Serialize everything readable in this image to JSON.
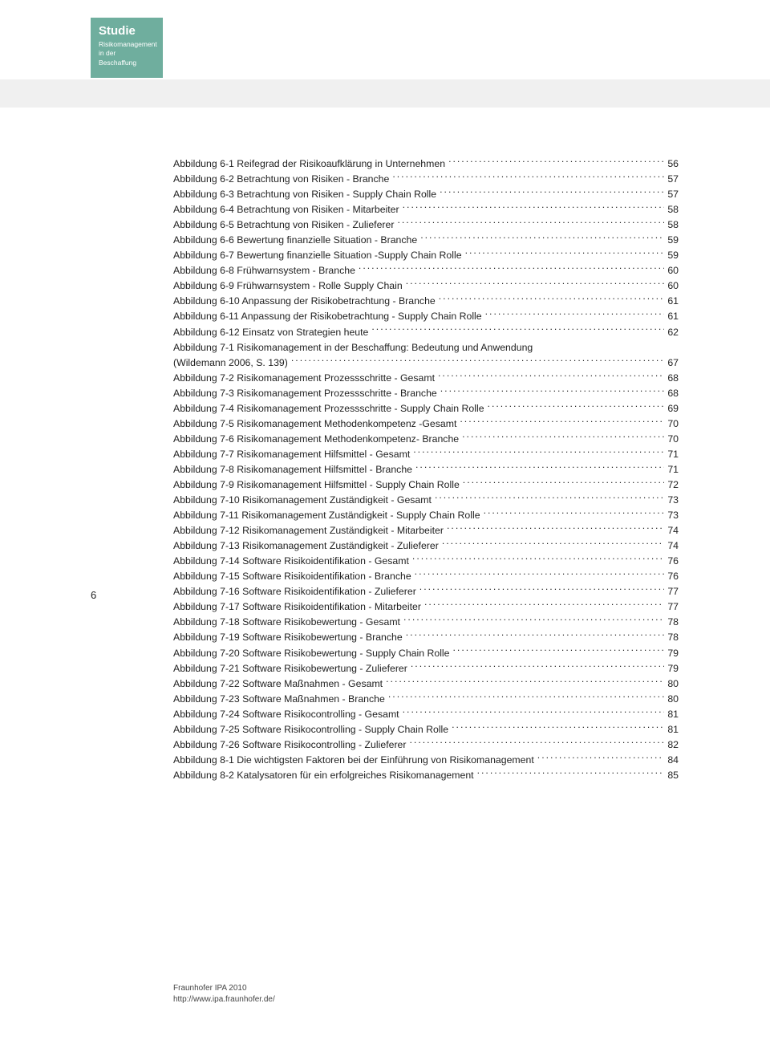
{
  "header": {
    "title": "Studie",
    "subtitle1": "Risikomanagement",
    "subtitle2": "in der Beschaffung"
  },
  "page_number": "6",
  "footer": {
    "line1": "Fraunhofer IPA 2010",
    "line2": "http://www.ipa.fraunhofer.de/"
  },
  "colors": {
    "tab_bg": "#6fae9e",
    "tab_text": "#ffffff",
    "bar_bg": "#f0f0f0",
    "body_text": "#222222",
    "page_bg": "#ffffff"
  },
  "toc": [
    {
      "label": "Abbildung 6-1 Reifegrad der Risikoaufklärung in Unternehmen",
      "page": "56"
    },
    {
      "label": "Abbildung 6-2 Betrachtung von Risiken - Branche",
      "page": "57"
    },
    {
      "label": "Abbildung 6-3 Betrachtung von Risiken - Supply Chain Rolle",
      "page": "57"
    },
    {
      "label": "Abbildung 6-4 Betrachtung von Risiken - Mitarbeiter",
      "page": "58"
    },
    {
      "label": "Abbildung 6-5 Betrachtung von Risiken - Zulieferer",
      "page": "58"
    },
    {
      "label": "Abbildung 6-6 Bewertung finanzielle Situation - Branche",
      "page": "59"
    },
    {
      "label": "Abbildung 6-7 Bewertung finanzielle Situation -Supply Chain Rolle",
      "page": "59"
    },
    {
      "label": "Abbildung 6-8 Frühwarnsystem - Branche",
      "page": "60"
    },
    {
      "label": "Abbildung 6-9 Frühwarnsystem - Rolle Supply Chain",
      "page": "60"
    },
    {
      "label": "Abbildung 6-10 Anpassung der Risikobetrachtung - Branche",
      "page": "61"
    },
    {
      "label": "Abbildung 6-11 Anpassung der Risikobetrachtung - Supply Chain Rolle",
      "page": "61"
    },
    {
      "label": "Abbildung 6-12 Einsatz von Strategien heute",
      "page": "62"
    },
    {
      "label": "Abbildung 7-1 Risikomanagement in der Beschaffung: Bedeutung und Anwendung",
      "cont": "(Wildemann 2006, S. 139)",
      "page": "67"
    },
    {
      "label": "Abbildung 7-2 Risikomanagement Prozessschritte - Gesamt",
      "page": "68"
    },
    {
      "label": "Abbildung 7-3 Risikomanagement Prozessschritte - Branche",
      "page": "68"
    },
    {
      "label": "Abbildung 7-4 Risikomanagement Prozessschritte - Supply Chain Rolle",
      "page": "69"
    },
    {
      "label": "Abbildung 7-5 Risikomanagement Methodenkompetenz -Gesamt",
      "page": "70"
    },
    {
      "label": "Abbildung 7-6 Risikomanagement Methodenkompetenz- Branche",
      "page": "70"
    },
    {
      "label": "Abbildung 7-7 Risikomanagement Hilfsmittel - Gesamt",
      "page": "71"
    },
    {
      "label": "Abbildung 7-8 Risikomanagement Hilfsmittel - Branche",
      "page": "71"
    },
    {
      "label": "Abbildung 7-9 Risikomanagement Hilfsmittel - Supply Chain Rolle",
      "page": "72"
    },
    {
      "label": "Abbildung 7-10 Risikomanagement Zuständigkeit - Gesamt",
      "page": "73"
    },
    {
      "label": "Abbildung 7-11 Risikomanagement Zuständigkeit - Supply Chain Rolle",
      "page": "73"
    },
    {
      "label": "Abbildung 7-12 Risikomanagement Zuständigkeit - Mitarbeiter",
      "page": "74"
    },
    {
      "label": "Abbildung 7-13 Risikomanagement Zuständigkeit - Zulieferer",
      "page": "74"
    },
    {
      "label": "Abbildung 7-14 Software Risikoidentifikation - Gesamt",
      "page": "76"
    },
    {
      "label": "Abbildung 7-15 Software Risikoidentifikation - Branche",
      "page": "76"
    },
    {
      "label": "Abbildung 7-16 Software Risikoidentifikation - Zulieferer",
      "page": "77"
    },
    {
      "label": "Abbildung 7-17 Software Risikoidentifikation - Mitarbeiter",
      "page": "77"
    },
    {
      "label": "Abbildung 7-18 Software Risikobewertung - Gesamt",
      "page": "78"
    },
    {
      "label": "Abbildung 7-19 Software Risikobewertung - Branche",
      "page": "78"
    },
    {
      "label": "Abbildung 7-20 Software Risikobewertung - Supply Chain Rolle",
      "page": "79"
    },
    {
      "label": "Abbildung 7-21 Software Risikobewertung - Zulieferer",
      "page": "79"
    },
    {
      "label": "Abbildung 7-22 Software Maßnahmen - Gesamt",
      "page": "80"
    },
    {
      "label": "Abbildung 7-23 Software Maßnahmen - Branche",
      "page": "80"
    },
    {
      "label": "Abbildung 7-24 Software Risikocontrolling - Gesamt",
      "page": "81"
    },
    {
      "label": "Abbildung 7-25 Software Risikocontrolling - Supply Chain Rolle",
      "page": "81"
    },
    {
      "label": "Abbildung 7-26 Software Risikocontrolling - Zulieferer",
      "page": "82"
    },
    {
      "label": "Abbildung 8-1 Die wichtigsten Faktoren bei der Einführung von Risikomanagement",
      "page": "84"
    },
    {
      "label": "Abbildung 8-2 Katalysatoren für ein erfolgreiches Risikomanagement",
      "page": "85"
    }
  ]
}
